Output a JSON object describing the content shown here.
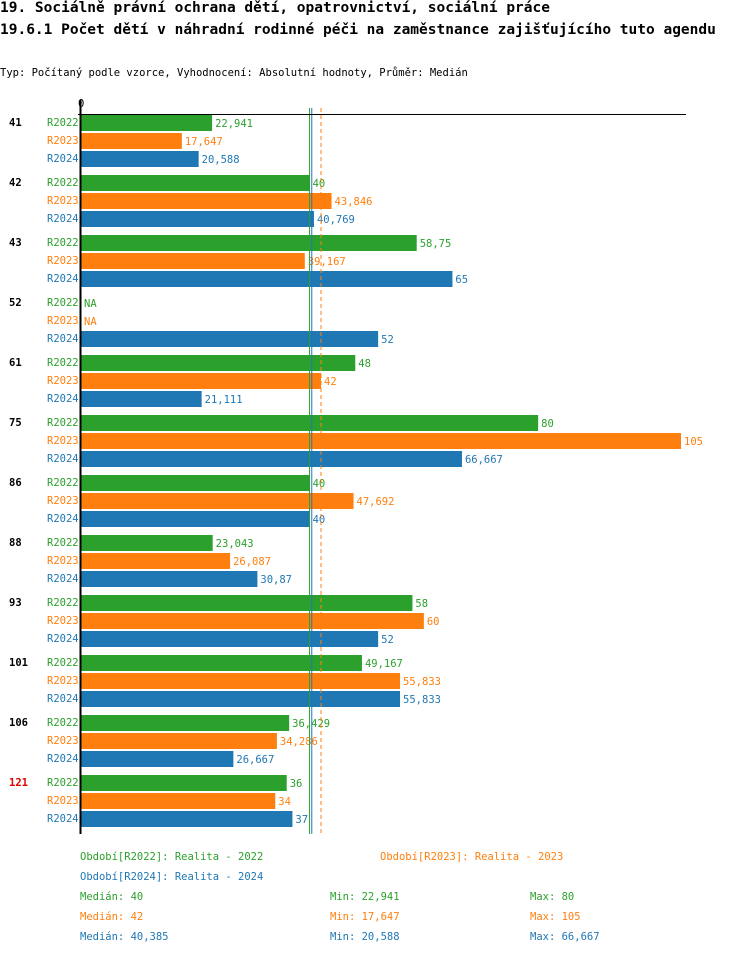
{
  "header": {
    "title": "19. Sociálně právní ochrana dětí, opatrovnictví, sociální práce",
    "subtitle": "19.6.1 Počet dětí v náhradní rodinné péči na zaměstnance zajišťujícího tuto agendu",
    "info": "Typ: Počítaný podle vzorce, Vyhodnocení: Absolutní hodnoty, Průměr: Medián"
  },
  "chart_data": {
    "type": "bar",
    "orientation": "horizontal",
    "xlim": [
      0,
      105
    ],
    "x_tick_labels": [
      "0"
    ],
    "categories": [
      "41",
      "42",
      "43",
      "52",
      "61",
      "75",
      "86",
      "88",
      "93",
      "101",
      "106",
      "121"
    ],
    "highlighted_category": "121",
    "highlight_color": "#e00000",
    "series": [
      {
        "name": "R2022",
        "color": "#2ca02c",
        "values": [
          22.941,
          40,
          58.75,
          null,
          48,
          80,
          40,
          23.043,
          58,
          49.167,
          36.429,
          36
        ],
        "labels": [
          "22,941",
          "40",
          "58,75",
          "NA",
          "48",
          "80",
          "40",
          "23,043",
          "58",
          "49,167",
          "36,429",
          "36"
        ]
      },
      {
        "name": "R2023",
        "color": "#ff7f0e",
        "values": [
          17.647,
          43.846,
          39.167,
          null,
          42,
          105,
          47.692,
          26.087,
          60,
          55.833,
          34.286,
          34
        ],
        "labels": [
          "17,647",
          "43,846",
          "39,167",
          "NA",
          "42",
          "105",
          "47,692",
          "26,087",
          "60",
          "55,833",
          "34,286",
          "34"
        ]
      },
      {
        "name": "R2024",
        "color": "#1f77b4",
        "values": [
          20.588,
          40.769,
          65,
          52,
          21.111,
          66.667,
          40,
          30.87,
          52,
          55.833,
          26.667,
          37
        ],
        "labels": [
          "20,588",
          "40,769",
          "65",
          "52",
          "21,111",
          "66,667",
          "40",
          "30,87",
          "52",
          "55,833",
          "26,667",
          "37"
        ]
      }
    ],
    "medians": [
      40,
      42,
      40.385
    ],
    "legend": [
      "Období[R2022]: Realita - 2022",
      "Období[R2023]: Realita - 2023",
      "Období[R2024]: Realita - 2024"
    ],
    "stats": [
      {
        "median": "Medián: 40",
        "min": "Min: 22,941",
        "max": "Max: 80"
      },
      {
        "median": "Medián: 42",
        "min": "Min: 17,647",
        "max": "Max: 105"
      },
      {
        "median": "Medián: 40,385",
        "min": "Min: 20,588",
        "max": "Max: 66,667"
      }
    ]
  }
}
